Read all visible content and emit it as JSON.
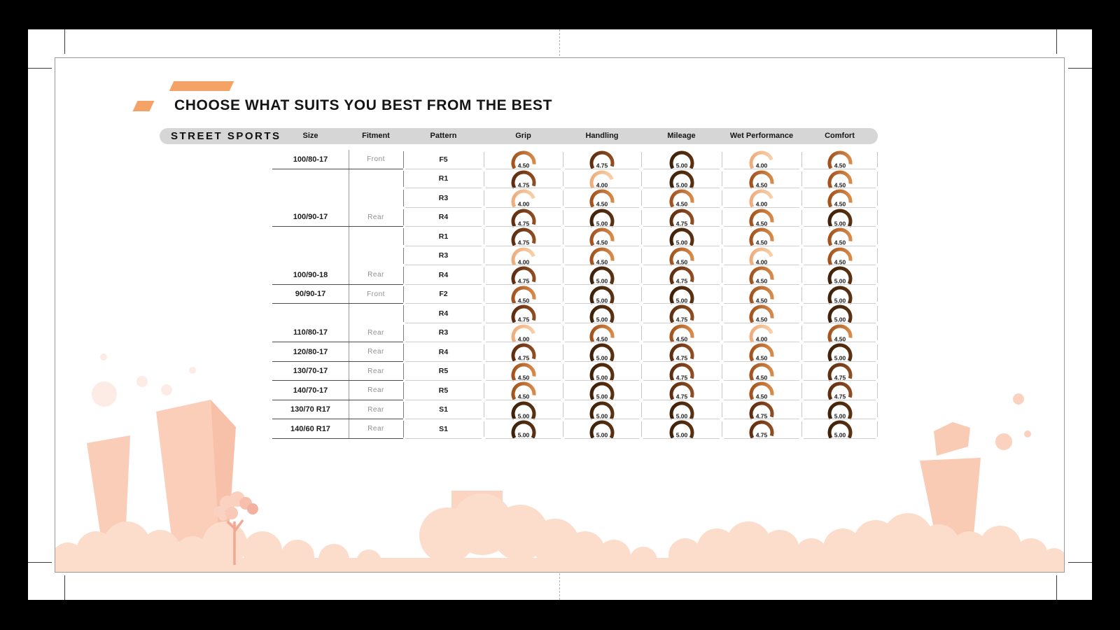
{
  "artboard": {
    "title": "CHOOSE WHAT SUITS YOU BEST FROM THE BEST",
    "category": "STREET SPORTS"
  },
  "table": {
    "columns": [
      "Size",
      "Fitment",
      "Pattern",
      "Grip",
      "Handling",
      "Mileage",
      "Wet Performance",
      "Comfort"
    ],
    "rows": [
      {
        "size": "100/80-17",
        "fitment": "Front",
        "pattern": "F5",
        "ratings": [
          4.5,
          4.75,
          5,
          4,
          4.5
        ],
        "group_end": true
      },
      {
        "size": "",
        "fitment": "",
        "pattern": "R1",
        "ratings": [
          4.75,
          4,
          5,
          4.5,
          4.5
        ],
        "group_end": false
      },
      {
        "size": "",
        "fitment": "",
        "pattern": "R3",
        "ratings": [
          4,
          4.5,
          4.5,
          4,
          4.5
        ],
        "group_end": false
      },
      {
        "size": "100/90-17",
        "fitment": "Rear",
        "pattern": "R4",
        "ratings": [
          4.75,
          5,
          4.75,
          4.5,
          5
        ],
        "group_end": true
      },
      {
        "size": "",
        "fitment": "",
        "pattern": "R1",
        "ratings": [
          4.75,
          4.5,
          5,
          4.5,
          4.5
        ],
        "group_end": false
      },
      {
        "size": "",
        "fitment": "",
        "pattern": "R3",
        "ratings": [
          4,
          4.5,
          4.5,
          4,
          4.5
        ],
        "group_end": false
      },
      {
        "size": "100/90-18",
        "fitment": "Rear",
        "pattern": "R4",
        "ratings": [
          4.75,
          5,
          4.75,
          4.5,
          5
        ],
        "group_end": true
      },
      {
        "size": "90/90-17",
        "fitment": "Front",
        "pattern": "F2",
        "ratings": [
          4.5,
          5,
          5,
          4.5,
          5
        ],
        "group_end": true
      },
      {
        "size": "",
        "fitment": "",
        "pattern": "R4",
        "ratings": [
          4.75,
          5,
          4.75,
          4.5,
          5
        ],
        "group_end": false
      },
      {
        "size": "110/80-17",
        "fitment": "Rear",
        "pattern": "R3",
        "ratings": [
          4,
          4.5,
          4.5,
          4,
          4.5
        ],
        "group_end": true
      },
      {
        "size": "120/80-17",
        "fitment": "Rear",
        "pattern": "R4",
        "ratings": [
          4.75,
          5,
          4.75,
          4.5,
          5
        ],
        "group_end": true
      },
      {
        "size": "130/70-17",
        "fitment": "Rear",
        "pattern": "R5",
        "ratings": [
          4.5,
          5,
          4.75,
          4.5,
          4.75
        ],
        "group_end": true
      },
      {
        "size": "140/70-17",
        "fitment": "Rear",
        "pattern": "R5",
        "ratings": [
          4.5,
          5,
          4.75,
          4.5,
          4.75
        ],
        "group_end": true
      },
      {
        "size": "130/70 R17",
        "fitment": "Rear",
        "pattern": "S1",
        "ratings": [
          5,
          5,
          5,
          4.75,
          5
        ],
        "group_end": true
      },
      {
        "size": "140/60 R17",
        "fitment": "Rear",
        "pattern": "S1",
        "ratings": [
          5,
          5,
          5,
          4.75,
          5
        ],
        "group_end": true
      }
    ]
  },
  "rating_scale": {
    "min": 0,
    "max": 5,
    "colors": {
      "4.00": [
        "#eead7c",
        "#f8cfa8"
      ],
      "4.50": [
        "#a2531e",
        "#d88a49"
      ],
      "4.75": [
        "#5f2d10",
        "#8f4d23"
      ],
      "5.00": [
        "#3f2209",
        "#5a3112"
      ]
    }
  },
  "accent_color": "#f5a266",
  "decor_colors": {
    "clouds": "#fcdccb",
    "towers": "#f9cdb8",
    "tower_side": "#f7c0a8",
    "building": "#fbd5c2",
    "bubbles_left": "#fdece5",
    "bubbles_right": "#fbd2c0",
    "tree_trunk": "#f2a893"
  }
}
